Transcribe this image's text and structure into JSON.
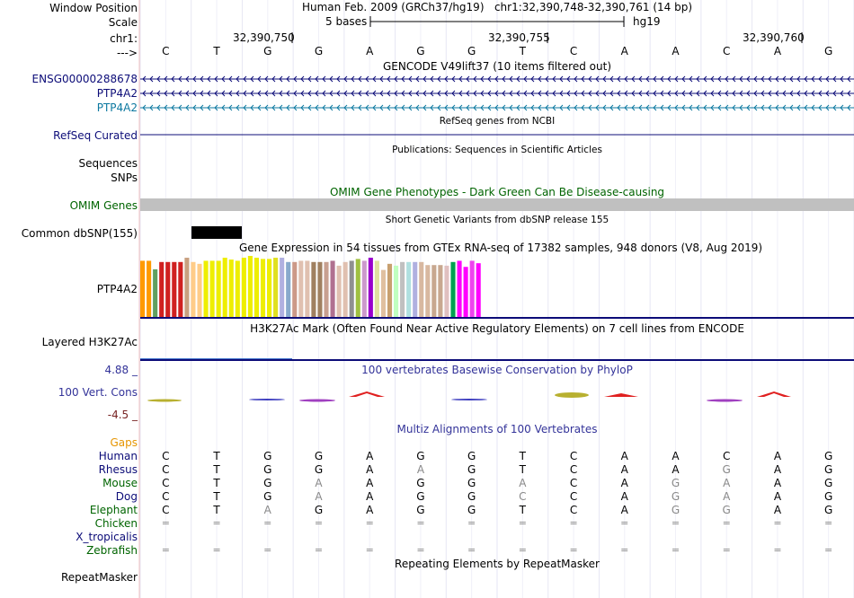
{
  "header": {
    "labels": {
      "window_position": "Window Position",
      "scale": "Scale",
      "chrom": "chr1:",
      "strand": "--->"
    },
    "assembly": "Human Feb. 2009 (GRCh37/hg19)",
    "position": "chr1:32,390,748-32,390,761 (14 bp)",
    "scale_text": "5 bases",
    "db": "hg19",
    "coords": [
      "32,390,750",
      "32,390,755",
      "32,390,760"
    ],
    "sequence": [
      "C",
      "T",
      "G",
      "G",
      "A",
      "G",
      "G",
      "T",
      "C",
      "A",
      "A",
      "C",
      "A",
      "G"
    ]
  },
  "gencode": {
    "title": "GENCODE V49lift37 (10 items filtered out)",
    "tracks": [
      {
        "name": "ENSG00000288678",
        "color": "#0c0c78"
      },
      {
        "name": "PTP4A2",
        "color": "#0c0c78"
      },
      {
        "name": "PTP4A2",
        "color": "#0c78a0"
      }
    ]
  },
  "refseq": {
    "title": "RefSeq genes from NCBI",
    "label": "RefSeq Curated"
  },
  "publications": {
    "title": "Publications: Sequences in Scientific Articles",
    "label_sequences": "Sequences",
    "label_snps": "SNPs"
  },
  "omim": {
    "title": "OMIM Gene Phenotypes - Dark Green Can Be Disease-causing",
    "label": "OMIM Genes",
    "title_color": "#006400",
    "bar_color": "#c0c0c0"
  },
  "dbsnp": {
    "title": "Short Genetic Variants from dbSNP release 155",
    "label": "Common dbSNP(155)"
  },
  "gtex": {
    "title": "Gene Expression in 54 tissues from GTEx RNA-seq of 17382 samples, 948 donors (V8, Aug 2019)",
    "label": "PTP4A2",
    "values": [
      0.92,
      0.92,
      0.78,
      0.9,
      0.9,
      0.9,
      0.9,
      0.97,
      0.9,
      0.87,
      0.92,
      0.92,
      0.92,
      0.97,
      0.94,
      0.92,
      0.97,
      1.0,
      0.97,
      0.95,
      0.95,
      0.97,
      0.97,
      0.9,
      0.9,
      0.92,
      0.92,
      0.9,
      0.9,
      0.9,
      0.92,
      0.84,
      0.9,
      0.92,
      0.95,
      0.92,
      0.97,
      0.92,
      0.77,
      0.87,
      0.84,
      0.9,
      0.9,
      0.9,
      0.9,
      0.85,
      0.85,
      0.85,
      0.84,
      0.9,
      0.92,
      0.82,
      0.92,
      0.88
    ],
    "colors": [
      "#ff9a00",
      "#ff9a00",
      "#60a060",
      "#d02020",
      "#d02020",
      "#d02020",
      "#d02020",
      "#c8a080",
      "#ffcc88",
      "#ffcc88",
      "#eeee00",
      "#eeee00",
      "#eeee00",
      "#eeee00",
      "#eeee00",
      "#eeee00",
      "#eeee00",
      "#eeee00",
      "#eeee00",
      "#eeee00",
      "#eeee00",
      "#e0e020",
      "#b0b0e0",
      "#88aacc",
      "#cc9988",
      "#e0c0b0",
      "#e0c0b0",
      "#a08060",
      "#a08060",
      "#c8a090",
      "#b07090",
      "#e0c0b0",
      "#e0c0b0",
      "#909090",
      "#a0c040",
      "#cc99cc",
      "#9900cc",
      "#e0e0a0",
      "#e0c0a0",
      "#c8a070",
      "#c0ffc0",
      "#c0c0c0",
      "#b0e0e0",
      "#b0b0e0",
      "#d8b8a0",
      "#d8b8a0",
      "#c8a890",
      "#c8a890",
      "#e0c0c0",
      "#00a050",
      "#ff00ff",
      "#ff00ff",
      "#ee44ee",
      "#ff00ff"
    ]
  },
  "h3k27ac": {
    "title": "H3K27Ac Mark (Often Found Near Active Regulatory Elements) on 7 cell lines from ENCODE",
    "label": "Layered H3K27Ac"
  },
  "phylop": {
    "title": "100 vertebrates Basewise Conservation by PhyloP",
    "label": "100 Vert. Cons",
    "max": "4.88 _",
    "min": "-4.5 _"
  },
  "multiz": {
    "title": "Multiz Alignments of 100 Vertebrates",
    "gaps_label": "Gaps",
    "species": [
      {
        "name": "Human",
        "seq": "CTGGAGGTCAACAG"
      },
      {
        "name": "Rhesus",
        "seq": "CTGGAAGTCAAGAG"
      },
      {
        "name": "Mouse",
        "seq": "CTGAAGGACAGAAG"
      },
      {
        "name": "Dog",
        "seq": "CTGAAGGCCAGAAG"
      },
      {
        "name": "Elephant",
        "seq": "CTAGAGGTCAGGAG"
      },
      {
        "name": "Chicken",
        "seq": "=============="
      },
      {
        "name": "X_tropicalis",
        "seq": ""
      },
      {
        "name": "Zebrafish",
        "seq": "=============="
      }
    ]
  },
  "repeatmasker": {
    "title": "Repeating Elements by RepeatMasker",
    "label": "RepeatMasker"
  }
}
